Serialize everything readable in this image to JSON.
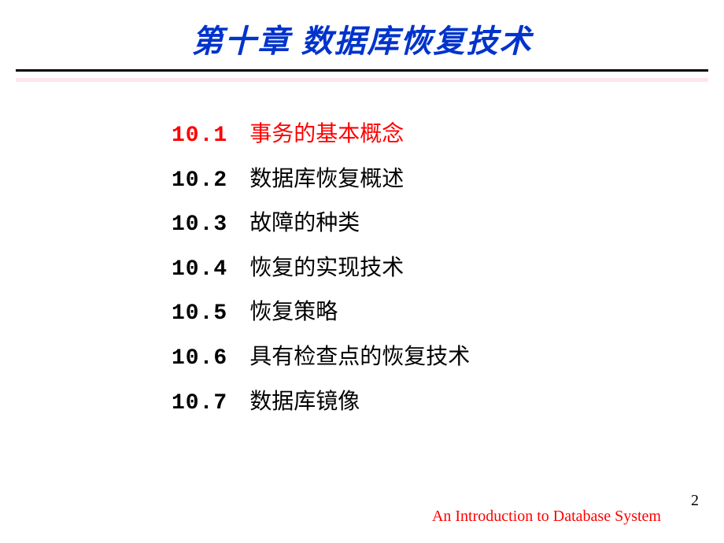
{
  "title": "第十章   数据库恢复技术",
  "sections": [
    {
      "num": "10.1",
      "text": "事务的基本概念",
      "highlight": true
    },
    {
      "num": "10.2",
      "text": "数据库恢复概述",
      "highlight": false
    },
    {
      "num": "10.3",
      "text": "故障的种类",
      "highlight": false
    },
    {
      "num": "10.4",
      "text": "恢复的实现技术",
      "highlight": false
    },
    {
      "num": "10.5",
      "text": "恢复策略",
      "highlight": false
    },
    {
      "num": "10.6",
      "text": "具有检查点的恢复技术",
      "highlight": false
    },
    {
      "num": "10.7",
      "text": "数据库镜像",
      "highlight": false
    }
  ],
  "footer": "An Introduction to Database System",
  "page_number": "2",
  "colors": {
    "title_color": "#0033cc",
    "highlight_color": "#ff0000",
    "text_color": "#000000",
    "footer_color": "#ff0000",
    "underline_color": "#000000",
    "pinkline_color": "#fde6ef",
    "background": "#ffffff"
  },
  "typography": {
    "title_fontsize": 40,
    "item_fontsize": 28,
    "footer_fontsize": 20
  }
}
